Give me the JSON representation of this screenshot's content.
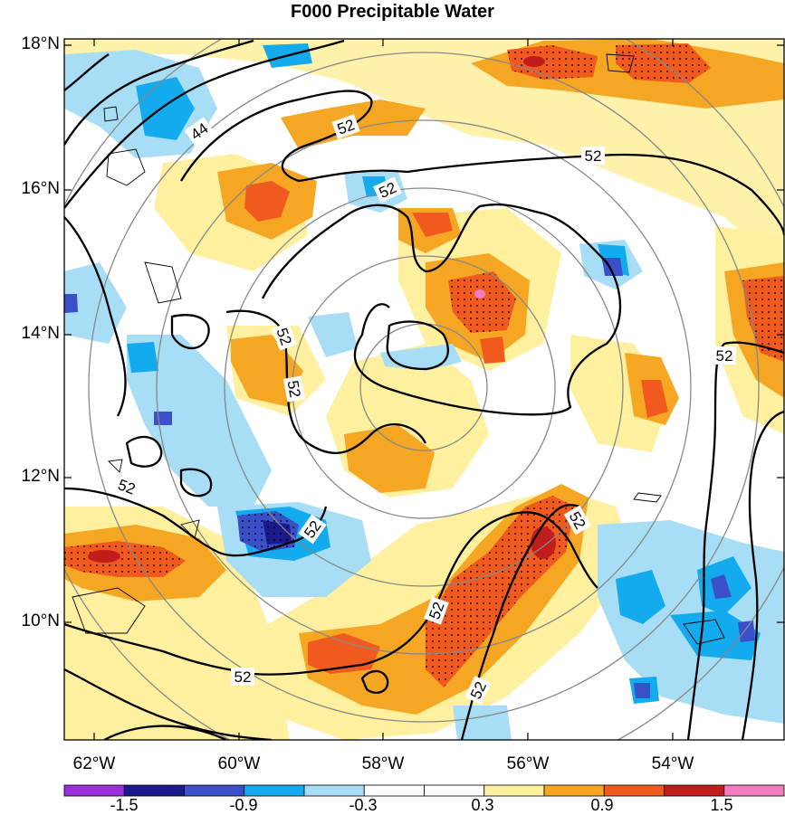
{
  "title": "F000 Precipitable Water",
  "lat_labels": [
    "18°N",
    "16°N",
    "14°N",
    "12°N",
    "10°N"
  ],
  "lon_labels": [
    "62°W",
    "60°W",
    "58°W",
    "56°W",
    "54°W"
  ],
  "contour_labels": [
    "44",
    "52",
    "52",
    "52",
    "52",
    "52",
    "52",
    "52",
    "52",
    "52",
    "52",
    "52",
    "52"
  ],
  "colorbar": {
    "colors": [
      "#9b30d9",
      "#1a1a8c",
      "#3a4fc8",
      "#14aaee",
      "#a8ddf6",
      "#ffffff",
      "#ffffff",
      "#fff0a0",
      "#f5a623",
      "#f05a1e",
      "#c21d1d",
      "#f07dbd"
    ],
    "labels": [
      "-1.5",
      "-0.9",
      "-0.3",
      "0.3",
      "0.9",
      "1.5"
    ]
  }
}
